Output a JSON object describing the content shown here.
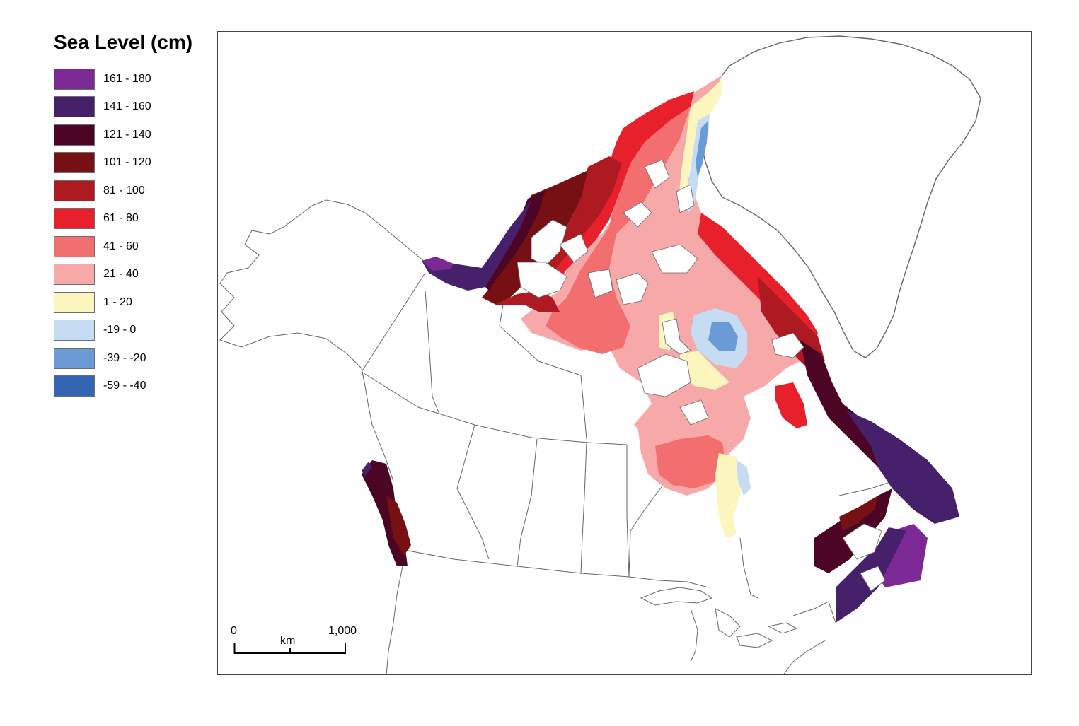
{
  "legend": {
    "title": "Sea Level (cm)",
    "items": [
      {
        "label": "161 - 180",
        "color": "#7b2a95"
      },
      {
        "label": "141 - 160",
        "color": "#47206b"
      },
      {
        "label": "121 - 140",
        "color": "#4d0526"
      },
      {
        "label": "101 - 120",
        "color": "#761013"
      },
      {
        "label": "81 - 100",
        "color": "#ad1a22"
      },
      {
        "label": "61 - 80",
        "color": "#e8202c"
      },
      {
        "label": "41 - 60",
        "color": "#f36f6f"
      },
      {
        "label": "21 - 40",
        "color": "#f7a9aa"
      },
      {
        "label": "1 - 20",
        "color": "#faf6be"
      },
      {
        "label": "-19 - 0",
        "color": "#c5dcf3"
      },
      {
        "label": "-39 - -20",
        "color": "#6b9bd6"
      },
      {
        "label": "-59 - -40",
        "color": "#3465b3"
      }
    ]
  },
  "scalebar": {
    "start": "0",
    "unit": "km",
    "end": "1,000"
  },
  "map": {
    "land_color": "#ffffff",
    "border_color": "#555555",
    "greenland_coast_color": "#666666"
  }
}
